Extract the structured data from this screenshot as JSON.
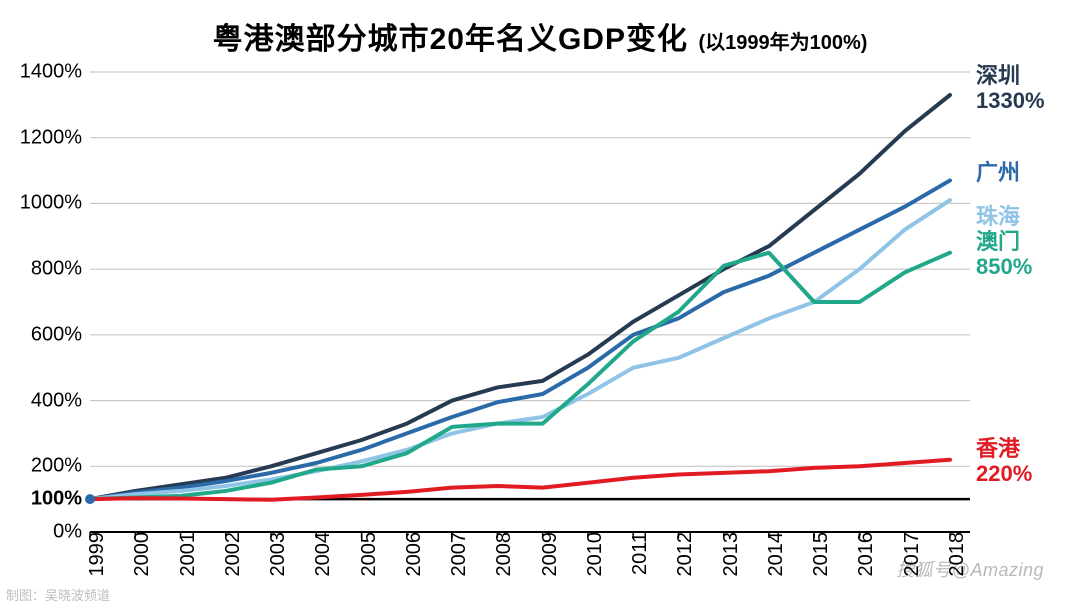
{
  "title": {
    "main": "粤港澳部分城市20年名义GDP变化",
    "sub": "(以1999年为100%)",
    "fontsize_main": 30,
    "fontsize_sub": 20,
    "color": "#000000"
  },
  "chart": {
    "type": "line",
    "background_color": "#ffffff",
    "axis_color": "#000000",
    "grid_color": "#bfbfbf",
    "grid_width": 1,
    "line_width": 4,
    "x": {
      "categories": [
        "1999",
        "2000",
        "2001",
        "2002",
        "2003",
        "2004",
        "2005",
        "2006",
        "2007",
        "2008",
        "2009",
        "2010",
        "2011",
        "2012",
        "2013",
        "2014",
        "2015",
        "2016",
        "2017",
        "2018"
      ],
      "tick_fontsize": 20,
      "rotation_deg": -90
    },
    "y": {
      "min": 0,
      "max": 1400,
      "tick_step": 200,
      "extra_tick": 100,
      "unit_suffix": "%",
      "tick_fontsize": 20,
      "emphasize_100": true
    },
    "series": [
      {
        "id": "shenzhen",
        "name": "深圳",
        "color": "#263a52",
        "end_label_value": "1330%",
        "label_fontsize": 22,
        "values": [
          100,
          125,
          145,
          165,
          200,
          240,
          280,
          330,
          400,
          440,
          460,
          540,
          640,
          720,
          800,
          870,
          980,
          1090,
          1220,
          1330
        ]
      },
      {
        "id": "guangzhou",
        "name": "广州",
        "color": "#2a6aa8",
        "end_label_value": "",
        "label_fontsize": 22,
        "values": [
          100,
          120,
          135,
          155,
          180,
          210,
          250,
          300,
          350,
          395,
          420,
          500,
          600,
          650,
          730,
          780,
          850,
          920,
          990,
          1070
        ]
      },
      {
        "id": "zhuhai",
        "name": "珠海",
        "color": "#8fc4e6",
        "end_label_value": "",
        "label_fontsize": 22,
        "values": [
          100,
          115,
          125,
          140,
          160,
          185,
          215,
          250,
          300,
          330,
          350,
          420,
          500,
          530,
          590,
          650,
          700,
          800,
          920,
          1010
        ]
      },
      {
        "id": "macau",
        "name": "澳门",
        "color": "#21a88a",
        "end_label_value": "850%",
        "label_fontsize": 22,
        "values": [
          100,
          105,
          110,
          125,
          150,
          190,
          200,
          240,
          320,
          330,
          330,
          450,
          580,
          670,
          810,
          850,
          700,
          700,
          790,
          850
        ]
      },
      {
        "id": "hongkong",
        "name": "香港",
        "color": "#e11b22",
        "end_label_value": "220%",
        "label_fontsize": 22,
        "values": [
          100,
          103,
          102,
          100,
          98,
          105,
          113,
          122,
          135,
          140,
          135,
          150,
          165,
          175,
          180,
          185,
          195,
          200,
          210,
          220
        ]
      }
    ],
    "start_marker": {
      "radius": 5,
      "color": "#2a6aa8"
    }
  },
  "credit": "制图：吴晓波频道",
  "watermark": "搜狐号@Amazing"
}
